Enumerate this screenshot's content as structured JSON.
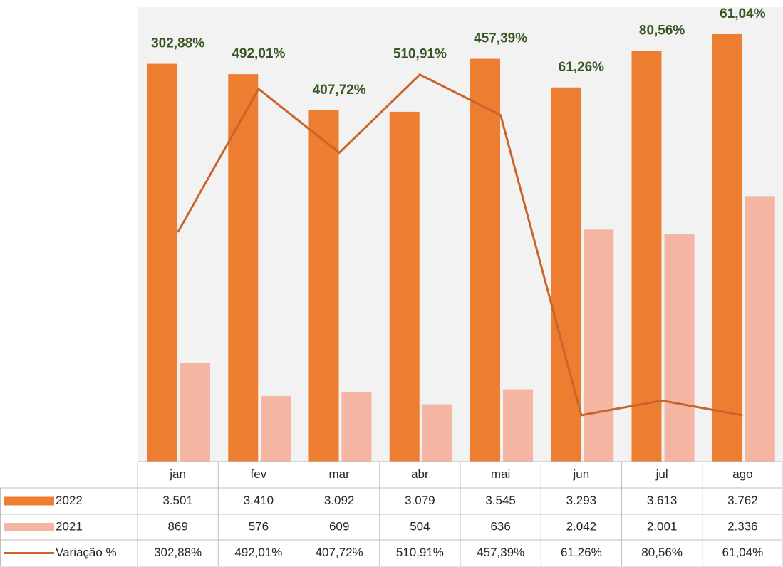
{
  "chart_data": {
    "type": "bar",
    "categories": [
      "jan",
      "fev",
      "mar",
      "abr",
      "mai",
      "jun",
      "jul",
      "ago"
    ],
    "series": [
      {
        "name": "2022",
        "color": "#ed7d31",
        "values": [
          3501,
          3410,
          3092,
          3079,
          3545,
          3293,
          3613,
          3762
        ],
        "value_labels": [
          "3.501",
          "3.410",
          "3.092",
          "3.079",
          "3.545",
          "3.293",
          "3.613",
          "3.762"
        ]
      },
      {
        "name": "2021",
        "color": "#f4b6a2",
        "values": [
          869,
          576,
          609,
          504,
          636,
          2042,
          2001,
          2336
        ],
        "value_labels": [
          "869",
          "576",
          "609",
          "504",
          "636",
          "2.042",
          "2.001",
          "2.336"
        ]
      },
      {
        "name": "Variação %",
        "type": "line",
        "axis": "y2",
        "color": "#c9652b",
        "label_color": "#375623",
        "values": [
          302.88,
          492.01,
          407.72,
          510.91,
          457.39,
          61.26,
          80.56,
          61.04
        ],
        "value_labels": [
          "302,88%",
          "492,01%",
          "407,72%",
          "510,91%",
          "457,39%",
          "61,26%",
          "80,56%",
          "61,04%"
        ]
      }
    ],
    "ylim": [
      0,
      4000
    ],
    "y2lim": [
      0,
      600
    ],
    "data_table": true
  }
}
